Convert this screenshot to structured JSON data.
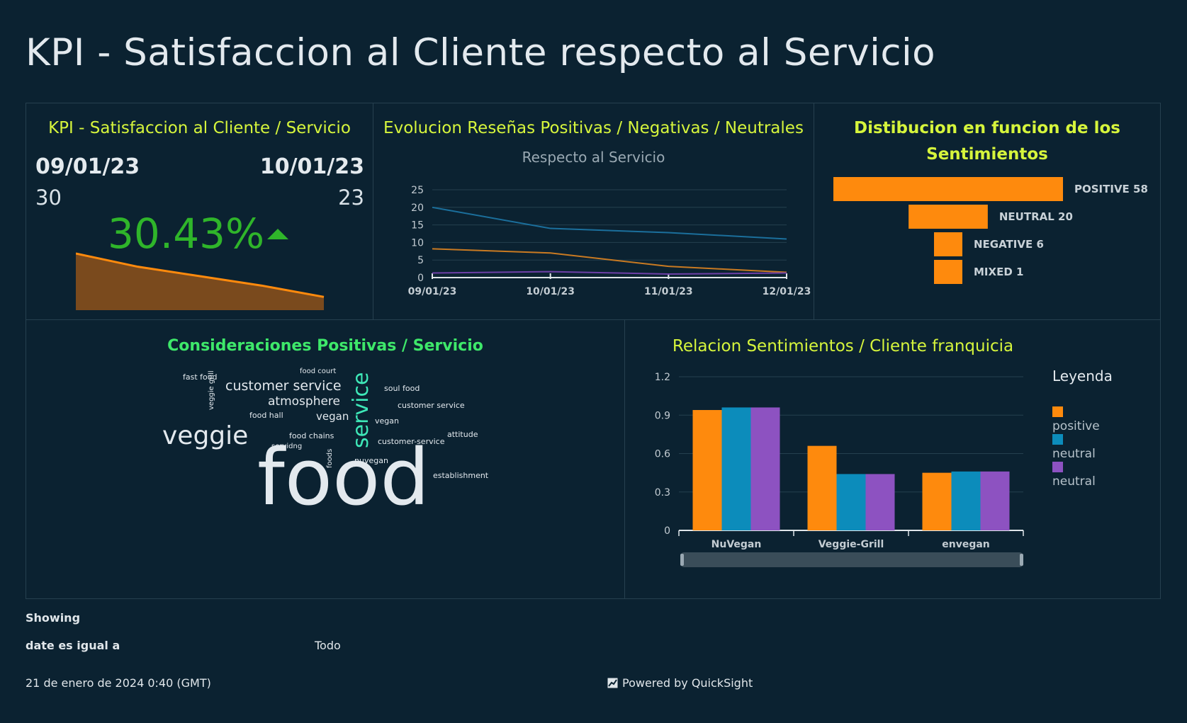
{
  "title": "KPI - Satisfaccion al Cliente respecto al Servicio",
  "kpi": {
    "title": "KPI - Satisfaccion al Cliente / Servicio",
    "date_start": "09/01/23",
    "date_end": "10/01/23",
    "value_start": "30",
    "value_end": "23",
    "percent": "30.43%",
    "trend_icon": "triangle-up-icon",
    "sparkline": [
      30,
      23,
      18,
      13,
      7
    ]
  },
  "evolucion": {
    "title": "Evolucion Reseñas Positivas / Negativas / Neutrales",
    "subtitle": "Respecto al Servicio"
  },
  "distribucion": {
    "title_line1": "Distibucion en funcion de los",
    "title_line2": "Sentimientos"
  },
  "consideraciones": {
    "title": "Consideraciones Positivas / Servicio",
    "words": [
      {
        "text": "food",
        "size": 110
      },
      {
        "text": "veggie",
        "size": 36
      },
      {
        "text": "service",
        "size": 30
      },
      {
        "text": "customer service",
        "size": 19
      },
      {
        "text": "atmosphere",
        "size": 17
      },
      {
        "text": "vegan",
        "size": 15
      },
      {
        "text": "fast food",
        "size": 11
      },
      {
        "text": "food court",
        "size": 10
      },
      {
        "text": "veggie grill",
        "size": 10
      },
      {
        "text": "food hall",
        "size": 11
      },
      {
        "text": "food chains",
        "size": 11
      },
      {
        "text": "servidng",
        "size": 10
      },
      {
        "text": "soul food",
        "size": 11
      },
      {
        "text": "customer service",
        "size": 11
      },
      {
        "text": "vegan",
        "size": 11
      },
      {
        "text": "attitude",
        "size": 11
      },
      {
        "text": "customer-service",
        "size": 11
      },
      {
        "text": "foods",
        "size": 10
      },
      {
        "text": "nuvegan",
        "size": 11
      },
      {
        "text": "establishment",
        "size": 11
      }
    ]
  },
  "relacion": {
    "title": "Relacion Sentimientos / Cliente franquicia",
    "legend_title": "Leyenda"
  },
  "footer": {
    "showing": "Showing",
    "filter_label": "date es igual a",
    "filter_value": "Todo",
    "timestamp": "21 de enero de 2024 0:40 (GMT)",
    "powered": "Powered by QuickSight",
    "powered_icon": "chart-icon"
  },
  "colors": {
    "orange": "#fe8a0d",
    "blue": "#0c8cbb",
    "purple": "#8d52c1",
    "line_blue": "#1b6f9c",
    "line_orange": "#c97a22",
    "line_purple": "#6d3fa6",
    "green": "#2fb52a"
  },
  "chart_data": [
    {
      "type": "line",
      "title": "Evolucion Reseñas Positivas / Negativas / Neutrales",
      "subtitle": "Respecto al Servicio",
      "x": [
        "09/01/23",
        "10/01/23",
        "11/01/23",
        "12/01/23"
      ],
      "ylim": [
        0,
        25
      ],
      "yticks": [
        0,
        5,
        10,
        15,
        20,
        25
      ],
      "grid": true,
      "series": [
        {
          "values": [
            20,
            14,
            12.8,
            11
          ]
        },
        {
          "values": [
            8.2,
            7,
            3.2,
            1.5
          ]
        },
        {
          "values": [
            1.3,
            1.7,
            1.0,
            1.3
          ]
        }
      ]
    },
    {
      "type": "bar",
      "orientation": "horizontal-funnel",
      "title": "Distibucion en funcion de los Sentimientos",
      "categories": [
        "POSITIVE",
        "NEUTRAL",
        "NEGATIVE",
        "MIXED"
      ],
      "values": [
        58,
        20,
        6,
        1
      ],
      "labels": [
        "POSITIVE 58",
        "NEUTRAL 20",
        "NEGATIVE 6",
        "MIXED 1"
      ]
    },
    {
      "type": "bar",
      "title": "Relacion Sentimientos / Cliente franquicia",
      "categories": [
        "NuVegan",
        "Veggie-Grill",
        "envegan"
      ],
      "ylim": [
        0,
        1.2
      ],
      "yticks": [
        "0",
        "0.3",
        "0.6",
        "0.9",
        "1.2"
      ],
      "legend": "right",
      "series": [
        {
          "name": "positive",
          "values": [
            0.94,
            0.66,
            0.45
          ]
        },
        {
          "name": "neutral",
          "values": [
            0.96,
            0.44,
            0.46
          ]
        },
        {
          "name": "neutral",
          "values": [
            0.96,
            0.44,
            0.46
          ]
        }
      ]
    }
  ]
}
